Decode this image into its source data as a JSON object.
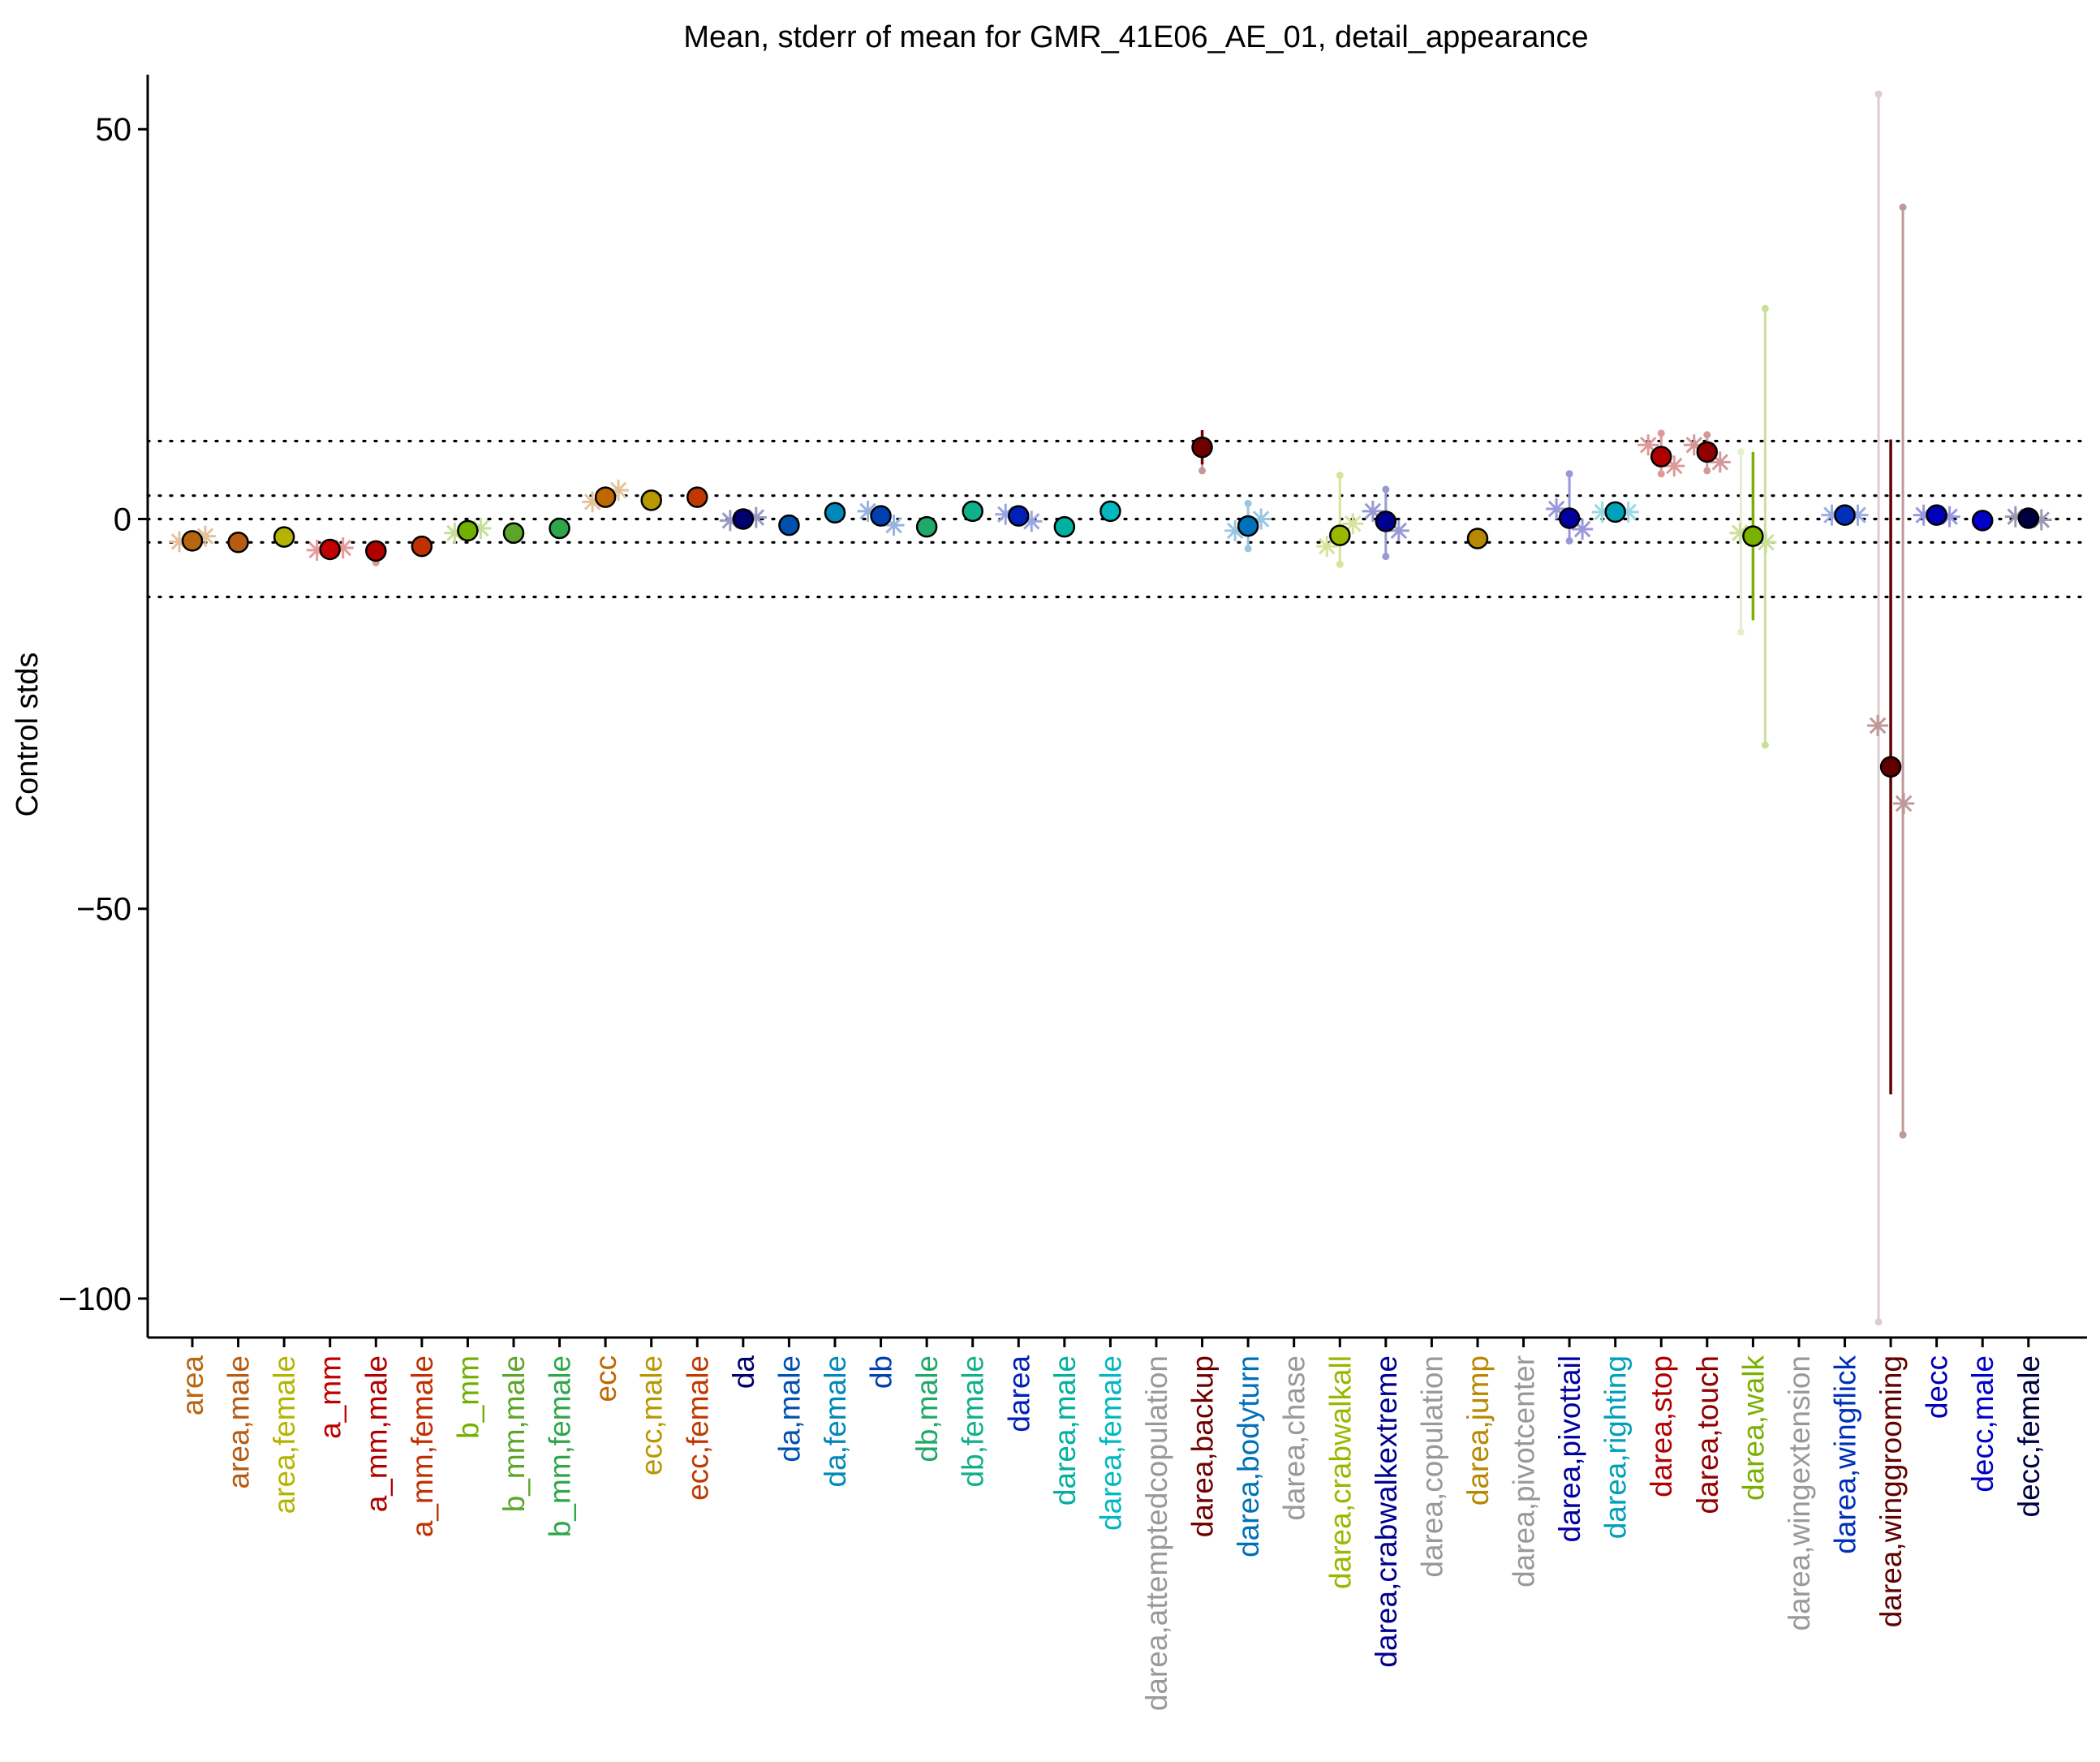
{
  "chart_data": {
    "type": "scatter",
    "title": "Mean, stderr of mean for GMR_41E06_AE_01, detail_appearance",
    "xlabel": "",
    "ylabel": "Control stds",
    "ylim": [
      -105,
      57
    ],
    "yticks": [
      50,
      0,
      -50,
      -100
    ],
    "reference_lines": [
      10,
      3,
      0,
      -3,
      -10
    ],
    "grid": false,
    "categories": [
      {
        "label": "area",
        "color": "#b8650f",
        "mean": -2.8,
        "err": 0.4,
        "male": -2.9,
        "female": -2.2
      },
      {
        "label": "area,male",
        "color": "#b85a0f",
        "mean": -3.0,
        "err": 0.4
      },
      {
        "label": "area,female",
        "color": "#b4b400",
        "mean": -2.3,
        "err": 0.4
      },
      {
        "label": "a_mm",
        "color": "#c00000",
        "mean": -3.9,
        "err": 0.4,
        "male": -4.0,
        "female": -3.7
      },
      {
        "label": "a_mm,male",
        "color": "#b00000",
        "mean": -4.1,
        "err": 0.5,
        "lo": -5.6
      },
      {
        "label": "a_mm,female",
        "color": "#c03000",
        "mean": -3.5,
        "err": 0.4
      },
      {
        "label": "b_mm",
        "color": "#72b000",
        "mean": -1.5,
        "err": 0.4,
        "male": -1.8,
        "female": -1.2
      },
      {
        "label": "b_mm,male",
        "color": "#5ca52a",
        "mean": -1.8,
        "err": 0.4
      },
      {
        "label": "b_mm,female",
        "color": "#2ea64a",
        "mean": -1.2,
        "err": 0.4
      },
      {
        "label": "ecc",
        "color": "#c06800",
        "mean": 2.8,
        "err": 0.5,
        "male": 2.2,
        "female": 3.7
      },
      {
        "label": "ecc,male",
        "color": "#b89800",
        "mean": 2.4,
        "err": 0.5
      },
      {
        "label": "ecc,female",
        "color": "#c03800",
        "mean": 2.8,
        "err": 0.5
      },
      {
        "label": "da",
        "color": "#00006e",
        "mean": 0.0,
        "err": 0.3,
        "male": -0.2,
        "female": 0.2
      },
      {
        "label": "da,male",
        "color": "#0050b0",
        "mean": -0.8,
        "err": 0.4
      },
      {
        "label": "da,female",
        "color": "#0088b8",
        "mean": 0.8,
        "err": 0.4
      },
      {
        "label": "db",
        "color": "#0040b0",
        "mean": 0.4,
        "err": 0.5,
        "male": 1.0,
        "female": -0.8
      },
      {
        "label": "db,male",
        "color": "#20a868",
        "mean": -1.0,
        "err": 0.4
      },
      {
        "label": "db,female",
        "color": "#10b088",
        "mean": 1.0,
        "err": 0.4
      },
      {
        "label": "darea",
        "color": "#0020b8",
        "mean": 0.4,
        "err": 0.4,
        "male": 0.6,
        "female": -0.3
      },
      {
        "label": "darea,male",
        "color": "#00b0a0",
        "mean": -1.0,
        "err": 0.4
      },
      {
        "label": "darea,female",
        "color": "#00b8c0",
        "mean": 1.0,
        "err": 0.4
      },
      {
        "label": "darea,attemptedcopulation",
        "color": "#999999"
      },
      {
        "label": "darea,backup",
        "color": "#6e0000",
        "mean": 9.2,
        "err": 2.2,
        "lo": 6.2
      },
      {
        "label": "darea,bodyturn",
        "color": "#0070b8",
        "mean": -0.9,
        "err": 0.6,
        "male": -1.5,
        "female": 0.0,
        "lo": -3.8,
        "hi": 2.0
      },
      {
        "label": "darea,chase",
        "color": "#999999"
      },
      {
        "label": "darea,crabwalkall",
        "color": "#98b800",
        "mean": -2.1,
        "err": 0.8,
        "male": -3.5,
        "female": -0.6,
        "lo": -5.8,
        "hi": 5.6
      },
      {
        "label": "darea,crabwalkextreme",
        "color": "#000090",
        "mean": -0.3,
        "err": 1.0,
        "male": 1.0,
        "female": -1.5,
        "lo": -4.8,
        "hi": 3.8
      },
      {
        "label": "darea,copulation",
        "color": "#999999"
      },
      {
        "label": "darea,jump",
        "color": "#b88800",
        "mean": -2.5,
        "err": 0.3
      },
      {
        "label": "darea,pivotcenter",
        "color": "#999999"
      },
      {
        "label": "darea,pivottail",
        "color": "#0000a0",
        "mean": 0.1,
        "err": 0.8,
        "male": 1.3,
        "female": -1.3,
        "lo": -2.8,
        "hi": 5.8
      },
      {
        "label": "darea,righting",
        "color": "#00a0b8",
        "mean": 0.9,
        "err": 0.4,
        "male": 0.9,
        "female": 0.9
      },
      {
        "label": "darea,stop",
        "color": "#b00000",
        "mean": 8.0,
        "err": 0.6,
        "male": 9.5,
        "female": 6.8,
        "lo": 5.8,
        "hi": 11.0
      },
      {
        "label": "darea,touch",
        "color": "#900000",
        "mean": 8.6,
        "err": 0.5,
        "male": 9.5,
        "female": 7.3,
        "lo": 6.2,
        "hi": 10.8
      },
      {
        "label": "darea,walk",
        "color": "#7ab000",
        "mean": -2.2,
        "err": 10.8,
        "male": -1.8,
        "female": -3.0,
        "lo": -29.0,
        "hi": 27.0,
        "lo_m": -14.5,
        "hi_m": 8.6
      },
      {
        "label": "darea,wingextension",
        "color": "#999999"
      },
      {
        "label": "darea,wingflick",
        "color": "#0030b8",
        "mean": 0.5,
        "err": 0.4,
        "male": 0.5,
        "female": 0.5
      },
      {
        "label": "darea,winggrooming",
        "color": "#600000",
        "mean": -31.8,
        "err": 42.0,
        "male": -26.5,
        "female": -36.5,
        "lo": -79.0,
        "hi": 40.0,
        "lo_m": -103.0,
        "hi_m": 54.5
      },
      {
        "label": "decc",
        "color": "#0000b8",
        "mean": 0.5,
        "err": 0.3,
        "male": 0.5,
        "female": 0.3
      },
      {
        "label": "decc,male",
        "color": "#0000c8",
        "mean": -0.2,
        "err": 0.3
      },
      {
        "label": "decc,female",
        "color": "#000040",
        "mean": 0.1,
        "err": 0.3,
        "male": 0.3,
        "female": -0.1
      }
    ]
  }
}
